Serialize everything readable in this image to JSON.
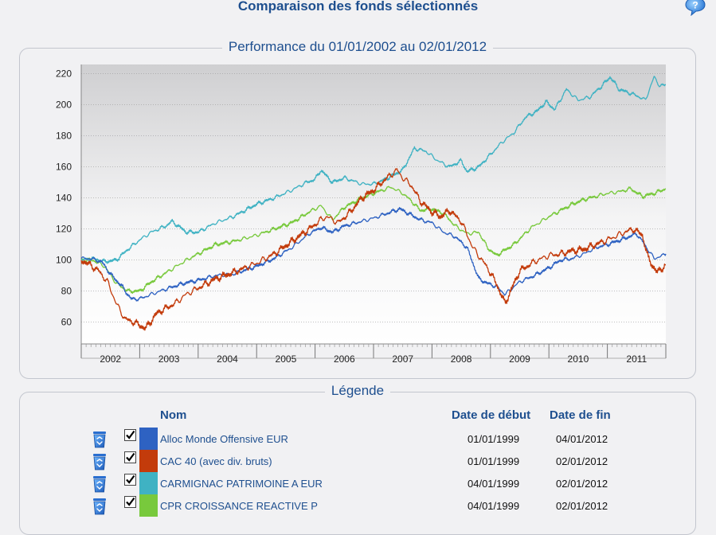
{
  "page": {
    "title": "Comparaison des fonds sélectionnés",
    "help_icon": "question-mark-icon"
  },
  "chart_panel": {
    "caption": "Performance du 01/01/2002 au 02/01/2012"
  },
  "legend_panel": {
    "caption": "Légende",
    "headers": {
      "name": "Nom",
      "start": "Date de début",
      "end": "Date de fin"
    },
    "rows": [
      {
        "name": "Alloc Monde Offensive EUR",
        "start": "01/01/1999",
        "end": "04/01/2012",
        "color": "#2e62c2",
        "checked": true,
        "delete_icon": "recycle-bin-icon"
      },
      {
        "name": "CAC 40 (avec div. bruts)",
        "start": "01/01/1999",
        "end": "02/01/2012",
        "color": "#c33b0b",
        "checked": true,
        "delete_icon": "recycle-bin-icon"
      },
      {
        "name": "CARMIGNAC PATRIMOINE A EUR",
        "start": "04/01/1999",
        "end": "02/01/2012",
        "color": "#3fb2c3",
        "checked": true,
        "delete_icon": "recycle-bin-icon"
      },
      {
        "name": "CPR CROISSANCE REACTIVE P",
        "start": "04/01/1999",
        "end": "02/01/2012",
        "color": "#78c93c",
        "checked": true,
        "delete_icon": "recycle-bin-icon"
      }
    ]
  },
  "chart_data": {
    "type": "line",
    "title": "Performance du 01/01/2002 au 02/01/2012",
    "xlabel": "",
    "ylabel": "",
    "xlim": [
      2002.0,
      2012.0
    ],
    "ylim": [
      46,
      226
    ],
    "y_ticks": [
      60,
      80,
      100,
      120,
      140,
      160,
      180,
      200,
      220
    ],
    "x_tick_labels": [
      "2002",
      "2003",
      "2004",
      "2005",
      "2006",
      "2007",
      "2008",
      "2009",
      "2010",
      "2011"
    ],
    "grid": true,
    "series": [
      {
        "name": "Alloc Monde Offensive EUR",
        "color": "#2e62c2",
        "x": [
          2002.0,
          2002.15,
          2002.35,
          2002.5,
          2002.7,
          2002.85,
          2003.0,
          2003.2,
          2003.5,
          2003.75,
          2004.0,
          2004.3,
          2004.6,
          2005.0,
          2005.3,
          2005.6,
          2005.9,
          2006.1,
          2006.3,
          2006.5,
          2006.7,
          2007.0,
          2007.3,
          2007.45,
          2007.6,
          2007.8,
          2008.0,
          2008.2,
          2008.4,
          2008.6,
          2008.8,
          2008.95,
          2009.1,
          2009.25,
          2009.5,
          2009.75,
          2010.0,
          2010.2,
          2010.4,
          2010.6,
          2010.8,
          2011.0,
          2011.3,
          2011.5,
          2011.6,
          2011.8,
          2011.95,
          2012.0
        ],
        "y": [
          101,
          101,
          99,
          91,
          83,
          75,
          75,
          78,
          82,
          85,
          87,
          90,
          91,
          96,
          101,
          108,
          117,
          121,
          118,
          122,
          124,
          127,
          131,
          133,
          130,
          126,
          124,
          118,
          115,
          108,
          88,
          85,
          83,
          78,
          86,
          90,
          95,
          100,
          101,
          104,
          108,
          110,
          114,
          117,
          112,
          101,
          103,
          104
        ]
      },
      {
        "name": "CAC 40 (avec div. bruts)",
        "color": "#c33b0b",
        "x": [
          2002.0,
          2002.15,
          2002.3,
          2002.45,
          2002.6,
          2002.75,
          2002.9,
          2003.1,
          2003.3,
          2003.6,
          2003.8,
          2004.0,
          2004.3,
          2004.6,
          2005.0,
          2005.3,
          2005.6,
          2005.9,
          2006.1,
          2006.2,
          2006.4,
          2006.6,
          2006.8,
          2007.0,
          2007.2,
          2007.4,
          2007.5,
          2007.65,
          2007.8,
          2008.0,
          2008.15,
          2008.3,
          2008.5,
          2008.7,
          2008.95,
          2009.1,
          2009.25,
          2009.5,
          2009.75,
          2010.0,
          2010.2,
          2010.4,
          2010.6,
          2010.8,
          2011.0,
          2011.3,
          2011.45,
          2011.6,
          2011.7,
          2011.85,
          2012.0
        ],
        "y": [
          100,
          97,
          93,
          86,
          72,
          62,
          60,
          56,
          66,
          72,
          78,
          82,
          88,
          92,
          98,
          104,
          112,
          120,
          126,
          128,
          124,
          131,
          140,
          145,
          152,
          158,
          153,
          148,
          138,
          131,
          128,
          132,
          125,
          108,
          95,
          85,
          72,
          93,
          99,
          103,
          104,
          106,
          107,
          110,
          113,
          118,
          120,
          116,
          101,
          92,
          97
        ]
      },
      {
        "name": "CARMIGNAC PATRIMOINE A EUR",
        "color": "#3fb2c3",
        "x": [
          2002.0,
          2002.2,
          2002.4,
          2002.6,
          2002.8,
          2003.0,
          2003.2,
          2003.45,
          2003.55,
          2003.8,
          2004.0,
          2004.3,
          2004.6,
          2005.0,
          2005.3,
          2005.6,
          2005.85,
          2006.0,
          2006.1,
          2006.3,
          2006.5,
          2006.8,
          2007.0,
          2007.2,
          2007.5,
          2007.7,
          2007.9,
          2008.1,
          2008.3,
          2008.5,
          2008.6,
          2008.8,
          2009.0,
          2009.2,
          2009.4,
          2009.6,
          2009.8,
          2009.95,
          2010.1,
          2010.3,
          2010.5,
          2010.7,
          2010.9,
          2011.05,
          2011.2,
          2011.35,
          2011.5,
          2011.65,
          2011.8,
          2011.9,
          2012.0
        ],
        "y": [
          100,
          101,
          99,
          100,
          107,
          113,
          118,
          122,
          125,
          118,
          118,
          124,
          128,
          136,
          140,
          145,
          150,
          152,
          158,
          150,
          153,
          149,
          149,
          152,
          158,
          172,
          170,
          164,
          160,
          164,
          157,
          160,
          168,
          176,
          182,
          192,
          196,
          202,
          197,
          210,
          203,
          205,
          212,
          218,
          210,
          208,
          206,
          203,
          218,
          212,
          213
        ]
      },
      {
        "name": "CPR CROISSANCE REACTIVE P",
        "color": "#78c93c",
        "x": [
          2002.0,
          2002.2,
          2002.4,
          2002.6,
          2002.8,
          2003.0,
          2003.2,
          2003.5,
          2003.8,
          2004.0,
          2004.3,
          2004.6,
          2005.0,
          2005.3,
          2005.6,
          2005.9,
          2006.1,
          2006.3,
          2006.5,
          2006.8,
          2007.0,
          2007.3,
          2007.5,
          2007.65,
          2007.8,
          2008.0,
          2008.2,
          2008.4,
          2008.6,
          2008.8,
          2008.95,
          2009.1,
          2009.4,
          2009.7,
          2010.0,
          2010.2,
          2010.4,
          2010.6,
          2010.8,
          2011.0,
          2011.2,
          2011.4,
          2011.6,
          2011.8,
          2012.0
        ],
        "y": [
          100,
          100,
          96,
          85,
          80,
          80,
          86,
          93,
          100,
          104,
          110,
          112,
          116,
          120,
          124,
          131,
          135,
          126,
          134,
          140,
          143,
          147,
          143,
          138,
          132,
          133,
          130,
          122,
          117,
          118,
          108,
          103,
          110,
          121,
          128,
          132,
          136,
          139,
          141,
          143,
          144,
          146,
          141,
          143,
          146
        ]
      }
    ]
  }
}
